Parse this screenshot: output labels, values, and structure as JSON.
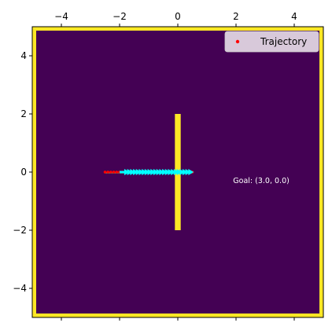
{
  "chart_data": {
    "type": "scatter",
    "title": "",
    "xlabel": "",
    "ylabel": "",
    "xlim": [
      -5,
      5
    ],
    "ylim": [
      -5,
      5
    ],
    "grid": false,
    "x_ticks": [
      -4,
      -2,
      0,
      2,
      4
    ],
    "y_ticks": [
      -4,
      -2,
      0,
      2,
      4
    ],
    "x_tick_labels": [
      "−4",
      "−2",
      "0",
      "2",
      "4"
    ],
    "y_tick_labels": [
      "−4",
      "−2",
      "0",
      "2",
      "4"
    ],
    "x_tick_position": "top",
    "legend": {
      "position": "top-right",
      "entries": [
        "Trajectory"
      ]
    },
    "background_color": "#440154",
    "obstacle_color": "#fde725",
    "obstacles": [
      {
        "kind": "boundary",
        "x": [
          -5,
          5
        ],
        "y": [
          -5,
          5
        ]
      },
      {
        "kind": "wall",
        "x": [
          -0.1,
          0.1
        ],
        "y": [
          -2,
          2
        ]
      }
    ],
    "series": [
      {
        "name": "Trajectory",
        "marker": "point",
        "color": "#ff0000",
        "x": [
          -2.5,
          -2.4,
          -2.3,
          -2.2,
          -2.1,
          -2.0,
          -1.9,
          -1.8,
          -1.7,
          -1.6,
          -1.5,
          -1.4,
          -1.3,
          -1.2,
          -1.1,
          -1.0,
          -0.9,
          -0.8,
          -0.7,
          -0.6,
          -0.5,
          -0.4,
          -0.3,
          -0.2,
          -0.1,
          0.0,
          0.1,
          0.2,
          0.3,
          0.4,
          0.5
        ],
        "y": [
          0,
          0,
          0,
          0,
          0,
          0,
          0,
          0,
          0,
          0,
          0,
          0,
          0,
          0,
          0,
          0,
          0,
          0,
          0,
          0,
          0,
          0,
          0,
          0,
          0,
          0,
          0,
          0,
          0,
          0,
          0
        ]
      }
    ],
    "heading_arrows": {
      "color": "#00ffff",
      "x": [
        -2.0,
        -1.9,
        -1.8,
        -1.7,
        -1.6,
        -1.5,
        -1.4,
        -1.3,
        -1.2,
        -1.1,
        -1.0,
        -0.9,
        -0.8,
        -0.7,
        -0.6,
        -0.5,
        -0.4,
        -0.3,
        -0.2,
        -0.1,
        0.0,
        0.1,
        0.2
      ],
      "y": [
        0,
        0,
        0,
        0,
        0,
        0,
        0,
        0,
        0,
        0,
        0,
        0,
        0,
        0,
        0,
        0,
        0,
        0,
        0,
        0,
        0,
        0,
        0
      ],
      "dx": 0.35,
      "dy": 0
    },
    "annotation": {
      "text": "Goal: (3.0, 0.0)",
      "x": 1.9,
      "y": -0.3,
      "color": "#ffffff"
    }
  }
}
